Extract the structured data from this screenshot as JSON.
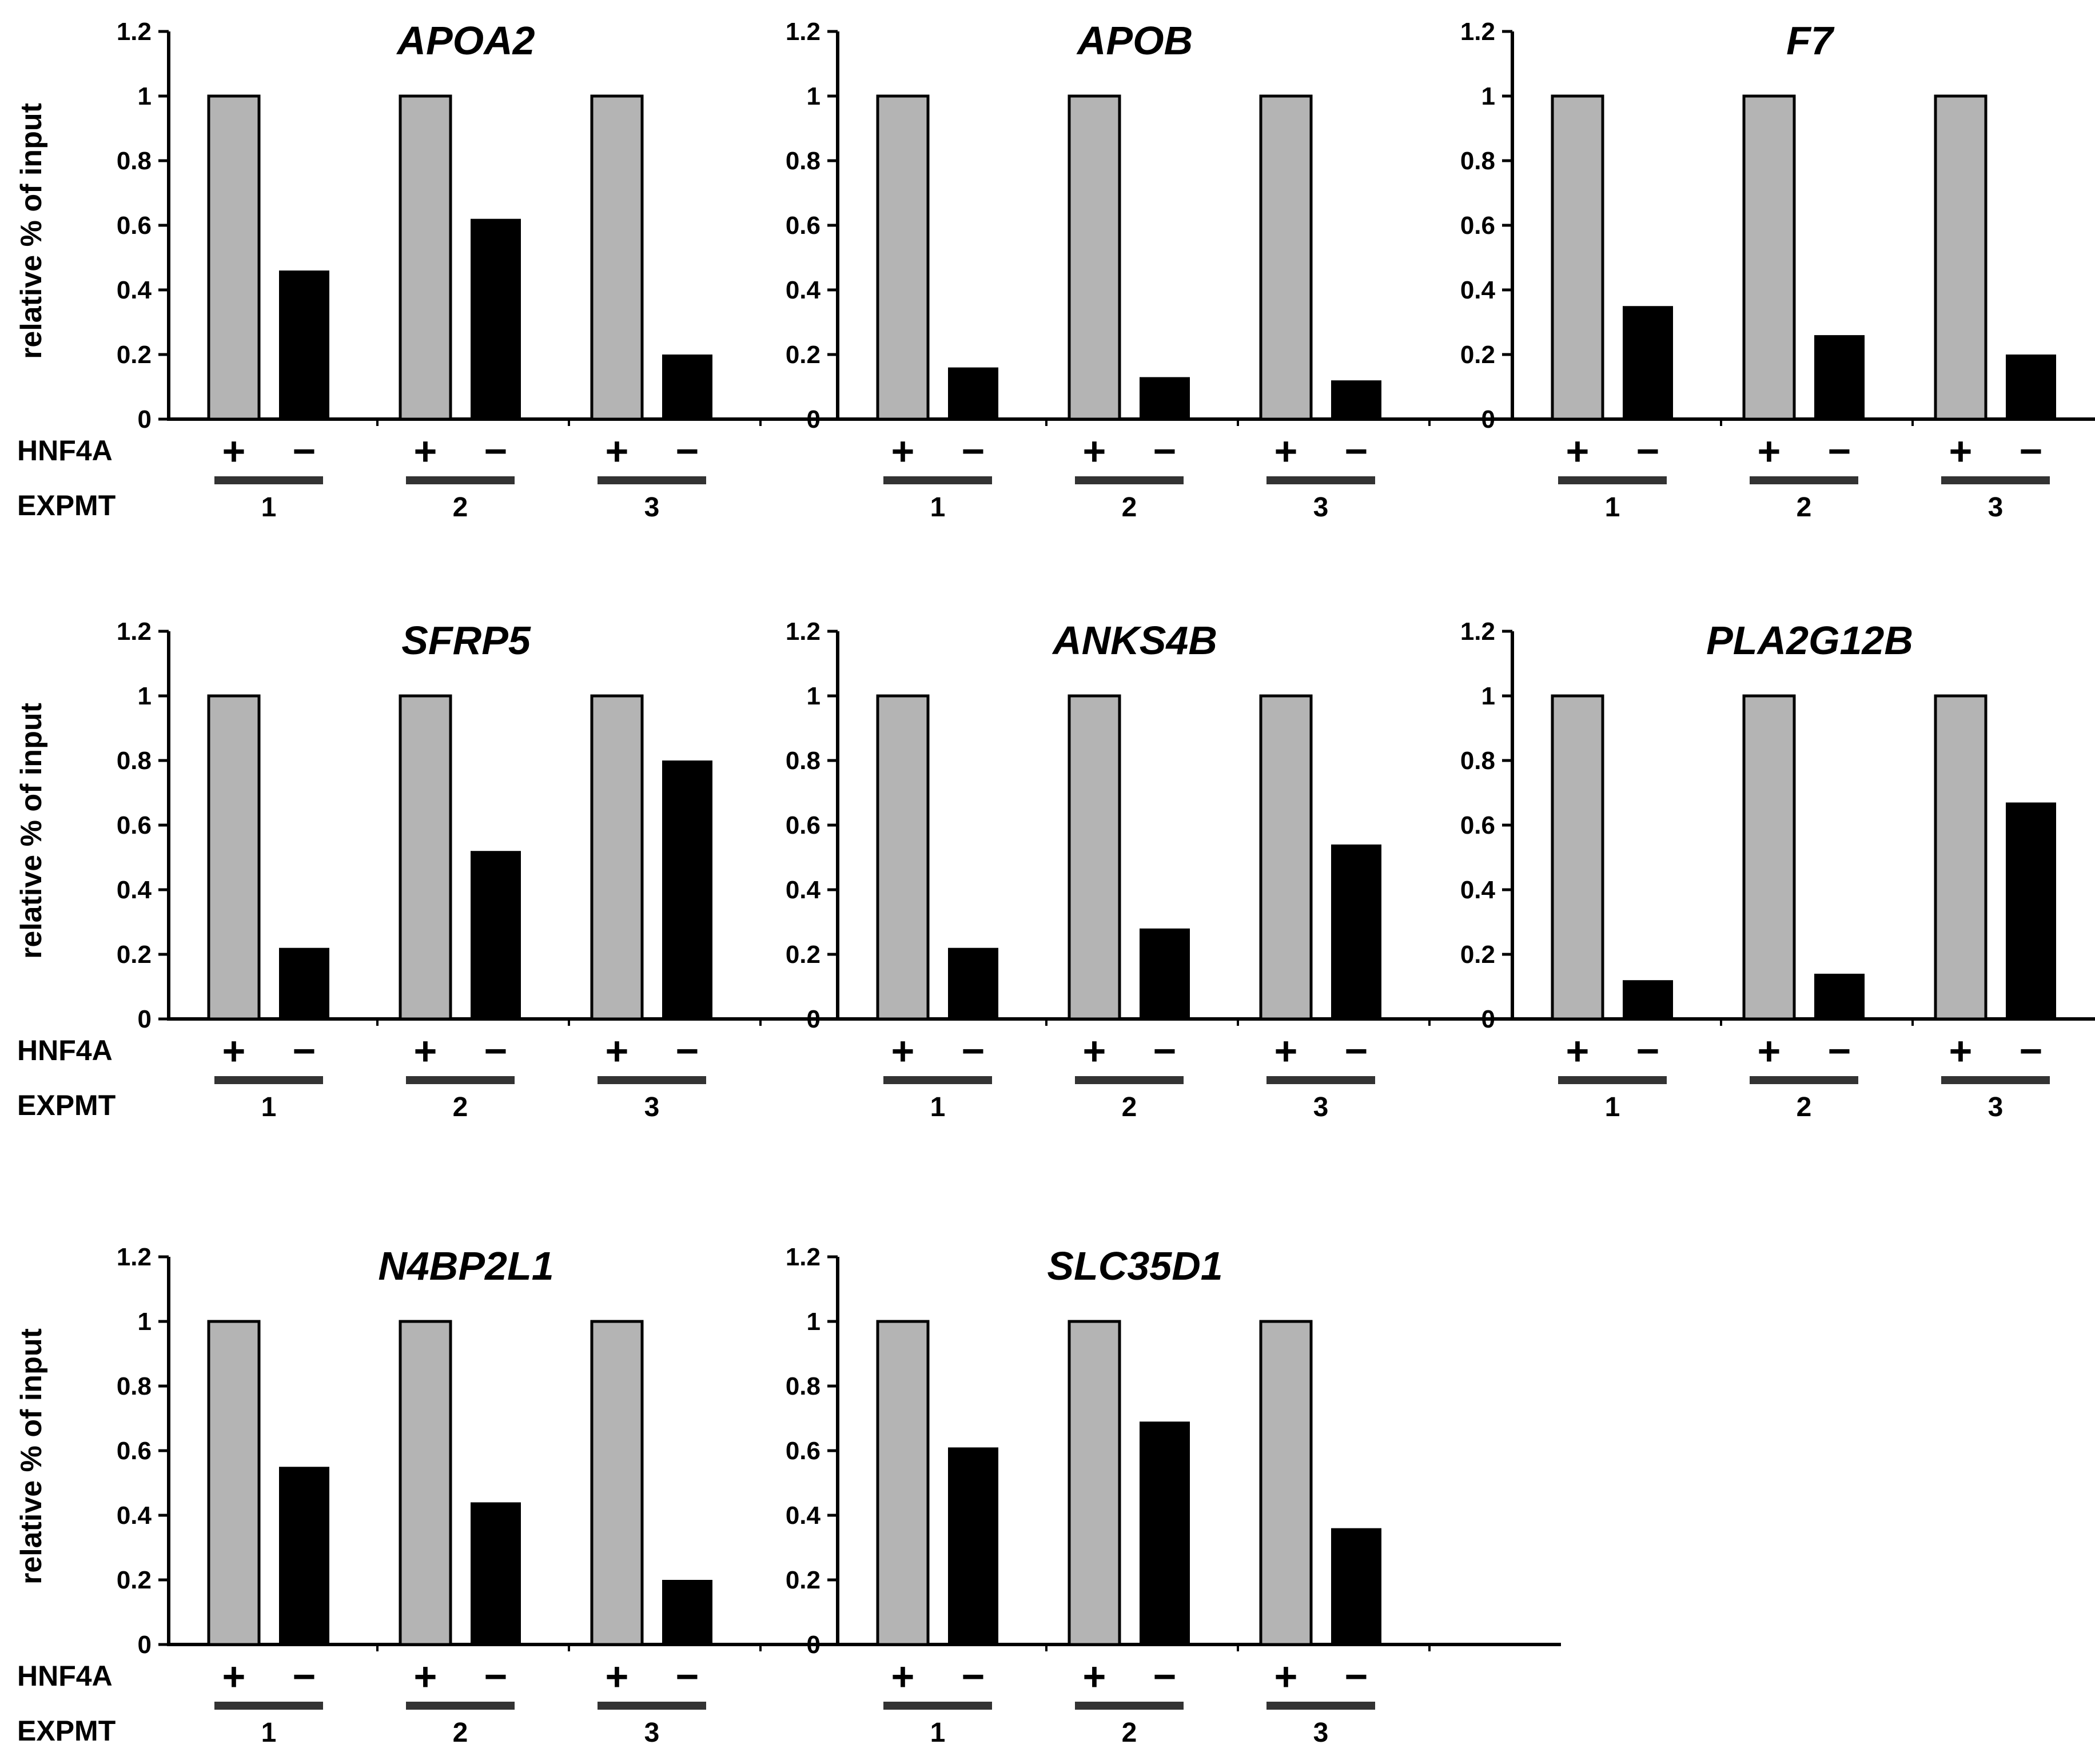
{
  "figure": {
    "y_axis_label": "relative % of  input",
    "row_label_treatment": "HNF4A",
    "row_label_experiment": "EXPMT",
    "plus_sign": "+",
    "minus_sign": "−",
    "experiments": [
      "1",
      "2",
      "3"
    ],
    "colors": {
      "plus_bar": "#b4b4b4",
      "minus_bar": "#000000",
      "axis": "#000000"
    }
  },
  "chart_data": [
    {
      "type": "bar",
      "title": "APOA2",
      "ylabel": "relative % of  input",
      "ylim": [
        0,
        1.2
      ],
      "yticks": [
        "0",
        "0.2",
        "0.4",
        "0.6",
        "0.8",
        "1",
        "1.2"
      ],
      "categories": [
        "1",
        "2",
        "3"
      ],
      "series": [
        {
          "name": "+",
          "values": [
            1,
            1,
            1
          ]
        },
        {
          "name": "−",
          "values": [
            0.46,
            0.62,
            0.2
          ]
        }
      ]
    },
    {
      "type": "bar",
      "title": "APOB",
      "ylabel": "relative % of  input",
      "ylim": [
        0,
        1.2
      ],
      "yticks": [
        "0",
        "0.2",
        "0.4",
        "0.6",
        "0.8",
        "1",
        "1.2"
      ],
      "categories": [
        "1",
        "2",
        "3"
      ],
      "series": [
        {
          "name": "+",
          "values": [
            1,
            1,
            1
          ]
        },
        {
          "name": "−",
          "values": [
            0.16,
            0.13,
            0.12
          ]
        }
      ]
    },
    {
      "type": "bar",
      "title": "F7",
      "ylabel": "relative % of  input",
      "ylim": [
        0,
        1.2
      ],
      "yticks": [
        "0",
        "0.2",
        "0.4",
        "0.6",
        "0.8",
        "1",
        "1.2"
      ],
      "categories": [
        "1",
        "2",
        "3"
      ],
      "series": [
        {
          "name": "+",
          "values": [
            1,
            1,
            1
          ]
        },
        {
          "name": "−",
          "values": [
            0.35,
            0.26,
            0.2
          ]
        }
      ]
    },
    {
      "type": "bar",
      "title": "SFRP5",
      "ylabel": "relative % of  input",
      "ylim": [
        0,
        1.2
      ],
      "yticks": [
        "0",
        "0.2",
        "0.4",
        "0.6",
        "0.8",
        "1",
        "1.2"
      ],
      "categories": [
        "1",
        "2",
        "3"
      ],
      "series": [
        {
          "name": "+",
          "values": [
            1,
            1,
            1
          ]
        },
        {
          "name": "−",
          "values": [
            0.22,
            0.52,
            0.8
          ]
        }
      ]
    },
    {
      "type": "bar",
      "title": "ANKS4B",
      "ylabel": "relative % of  input",
      "ylim": [
        0,
        1.2
      ],
      "yticks": [
        "0",
        "0.2",
        "0.4",
        "0.6",
        "0.8",
        "1",
        "1.2"
      ],
      "categories": [
        "1",
        "2",
        "3"
      ],
      "series": [
        {
          "name": "+",
          "values": [
            1,
            1,
            1
          ]
        },
        {
          "name": "−",
          "values": [
            0.22,
            0.28,
            0.54
          ]
        }
      ]
    },
    {
      "type": "bar",
      "title": "PLA2G12B",
      "ylabel": "relative % of  input",
      "ylim": [
        0,
        1.2
      ],
      "yticks": [
        "0",
        "0.2",
        "0.4",
        "0.6",
        "0.8",
        "1",
        "1.2"
      ],
      "categories": [
        "1",
        "2",
        "3"
      ],
      "series": [
        {
          "name": "+",
          "values": [
            1,
            1,
            1
          ]
        },
        {
          "name": "−",
          "values": [
            0.12,
            0.14,
            0.67
          ]
        }
      ]
    },
    {
      "type": "bar",
      "title": "N4BP2L1",
      "ylabel": "relative % of  input",
      "ylim": [
        0,
        1.2
      ],
      "yticks": [
        "0",
        "0.2",
        "0.4",
        "0.6",
        "0.8",
        "1",
        "1.2"
      ],
      "categories": [
        "1",
        "2",
        "3"
      ],
      "series": [
        {
          "name": "+",
          "values": [
            1,
            1,
            1
          ]
        },
        {
          "name": "−",
          "values": [
            0.55,
            0.44,
            0.2
          ]
        }
      ]
    },
    {
      "type": "bar",
      "title": "SLC35D1",
      "ylabel": "relative % of  input",
      "ylim": [
        0,
        1.2
      ],
      "yticks": [
        "0",
        "0.2",
        "0.4",
        "0.6",
        "0.8",
        "1",
        "1.2"
      ],
      "categories": [
        "1",
        "2",
        "3"
      ],
      "series": [
        {
          "name": "+",
          "values": [
            1,
            1,
            1
          ]
        },
        {
          "name": "−",
          "values": [
            0.61,
            0.69,
            0.36
          ]
        }
      ]
    }
  ]
}
